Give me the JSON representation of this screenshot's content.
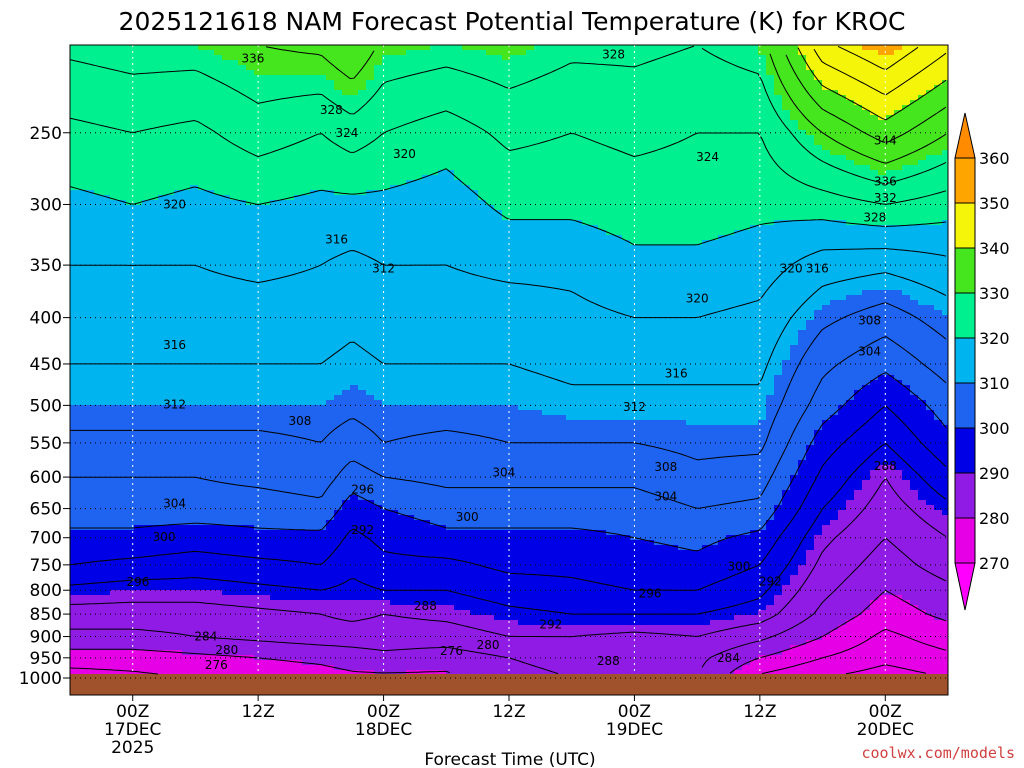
{
  "chart_data": {
    "type": "contour",
    "title": "2025121618 NAM Forecast Potential Temperature (K) for KROC",
    "xlabel": "Forecast Time (UTC)",
    "ylabel": "",
    "credit": "coolwx.com/models",
    "y_scale": "log-pressure",
    "y_ticks": [
      250,
      300,
      350,
      400,
      450,
      500,
      550,
      600,
      650,
      700,
      750,
      800,
      850,
      900,
      950,
      1000
    ],
    "ylim": [
      1000,
      200
    ],
    "x_ticks": [
      {
        "hour": 6,
        "lines": [
          "00Z",
          "17DEC",
          "2025"
        ]
      },
      {
        "hour": 18,
        "lines": [
          "12Z",
          "",
          ""
        ]
      },
      {
        "hour": 30,
        "lines": [
          "00Z",
          "18DEC",
          ""
        ]
      },
      {
        "hour": 42,
        "lines": [
          "12Z",
          "",
          ""
        ]
      },
      {
        "hour": 54,
        "lines": [
          "00Z",
          "19DEC",
          ""
        ]
      },
      {
        "hour": 66,
        "lines": [
          "12Z",
          "",
          ""
        ]
      },
      {
        "hour": 78,
        "lines": [
          "00Z",
          "20DEC",
          ""
        ]
      }
    ],
    "xlim": [
      0,
      84
    ],
    "grid": true,
    "colorbar": {
      "labels": [
        "360",
        "350",
        "340",
        "330",
        "320",
        "310",
        "300",
        "290",
        "280",
        "270"
      ],
      "bands": [
        {
          "lo": 270,
          "hi": 280,
          "color": "#e600e6"
        },
        {
          "lo": 280,
          "hi": 290,
          "color": "#8f1be5"
        },
        {
          "lo": 290,
          "hi": 300,
          "color": "#0000e6"
        },
        {
          "lo": 300,
          "hi": 310,
          "color": "#1e64f0"
        },
        {
          "lo": 310,
          "hi": 320,
          "color": "#00b4f0"
        },
        {
          "lo": 320,
          "hi": 330,
          "color": "#00f090"
        },
        {
          "lo": 330,
          "hi": 340,
          "color": "#46e61e"
        },
        {
          "lo": 340,
          "hi": 350,
          "color": "#f5f50a"
        },
        {
          "lo": 350,
          "hi": 360,
          "color": "#ffa500"
        }
      ],
      "low_arrow_color": "#ff00ff",
      "high_arrow_color": "#ff8c00"
    },
    "ground_color": "#a0522d",
    "contour_interval": 4,
    "profile_levels": [
      1000,
      950,
      900,
      850,
      800,
      750,
      700,
      650,
      600,
      550,
      500,
      450,
      400,
      350,
      300,
      250,
      200
    ],
    "profiles": [
      {
        "hour": 0,
        "theta": [
          274,
          278,
          283,
          286,
          291,
          296,
          299,
          302,
          304,
          307,
          310,
          312,
          314,
          316,
          319,
          323,
          329
        ]
      },
      {
        "hour": 6,
        "theta": [
          275,
          278,
          283,
          286,
          290,
          295,
          299,
          302,
          304,
          307,
          310,
          312,
          314,
          316,
          320,
          324,
          330
        ]
      },
      {
        "hour": 12,
        "theta": [
          276,
          279,
          284,
          286,
          290,
          294,
          298,
          302,
          304,
          307,
          310,
          312,
          314,
          316,
          319,
          323,
          330
        ]
      },
      {
        "hour": 18,
        "theta": [
          277,
          280,
          285,
          287,
          291,
          295,
          299,
          302,
          305,
          307,
          310,
          312,
          314,
          317,
          320,
          326,
          332
        ]
      },
      {
        "hour": 24,
        "theta": [
          278,
          281,
          286,
          288,
          292,
          296,
          299,
          303,
          306,
          308,
          310,
          312,
          314,
          316,
          319,
          324,
          333
        ]
      },
      {
        "hour": 27,
        "theta": [
          279,
          282,
          286,
          289,
          291,
          293,
          295,
          298,
          302,
          306,
          309,
          311,
          313,
          315,
          319,
          326,
          336
        ]
      },
      {
        "hour": 30,
        "theta": [
          279,
          283,
          286,
          288,
          292,
          295,
          297,
          300,
          304,
          308,
          310,
          312,
          314,
          316,
          319,
          324,
          331
        ]
      },
      {
        "hour": 36,
        "theta": [
          279,
          282,
          286,
          289,
          292,
          295,
          299,
          302,
          305,
          307,
          310,
          312,
          314,
          316,
          318,
          322,
          330
        ]
      },
      {
        "hour": 42,
        "theta": [
          283,
          284,
          288,
          291,
          294,
          297,
          299,
          302,
          305,
          308,
          310,
          312,
          314,
          317,
          321,
          325,
          331
        ]
      },
      {
        "hour": 48,
        "theta": [
          284,
          285,
          288,
          292,
          295,
          297,
          299,
          302,
          305,
          308,
          311,
          313,
          315,
          317,
          321,
          324,
          329
        ]
      },
      {
        "hour": 54,
        "theta": [
          284,
          285,
          287,
          292,
          296,
          298,
          300,
          302,
          305,
          308,
          311,
          313,
          316,
          319,
          322,
          325,
          329
        ]
      },
      {
        "hour": 60,
        "theta": [
          284,
          285,
          288,
          292,
          296,
          299,
          301,
          304,
          307,
          309,
          311,
          313,
          316,
          319,
          322,
          324,
          328
        ]
      },
      {
        "hour": 66,
        "theta": [
          275,
          280,
          285,
          290,
          293,
          296,
          299,
          303,
          306,
          309,
          311,
          313,
          315,
          318,
          321,
          324,
          330
        ]
      },
      {
        "hour": 72,
        "theta": [
          272,
          276,
          280,
          283,
          285,
          287,
          289,
          292,
          295,
          298,
          302,
          305,
          309,
          314,
          322,
          332,
          347
        ]
      },
      {
        "hour": 78,
        "theta": [
          270,
          273,
          275,
          278,
          280,
          282,
          284,
          286,
          288,
          292,
          296,
          301,
          306,
          313,
          324,
          338,
          352
        ]
      },
      {
        "hour": 84,
        "theta": [
          272,
          275,
          278,
          281,
          283,
          286,
          288,
          291,
          295,
          299,
          302,
          306,
          310,
          315,
          322,
          332,
          345
        ]
      }
    ],
    "contour_labels": [
      {
        "hour": 17.5,
        "p": 207,
        "text": "336"
      },
      {
        "hour": 52,
        "p": 205,
        "text": "328"
      },
      {
        "hour": 25,
        "p": 236,
        "text": "328"
      },
      {
        "hour": 26.5,
        "p": 250,
        "text": "324"
      },
      {
        "hour": 32,
        "p": 264,
        "text": "320"
      },
      {
        "hour": 61,
        "p": 266,
        "text": "324"
      },
      {
        "hour": 78,
        "p": 255,
        "text": "344"
      },
      {
        "hour": 78,
        "p": 283,
        "text": "336"
      },
      {
        "hour": 78,
        "p": 295,
        "text": "332"
      },
      {
        "hour": 77,
        "p": 310,
        "text": "328"
      },
      {
        "hour": 10,
        "p": 300,
        "text": "320"
      },
      {
        "hour": 30,
        "p": 353,
        "text": "312"
      },
      {
        "hour": 25.5,
        "p": 328,
        "text": "316"
      },
      {
        "hour": 60,
        "p": 381,
        "text": "320"
      },
      {
        "hour": 69,
        "p": 353,
        "text": "320"
      },
      {
        "hour": 71.5,
        "p": 353,
        "text": "316"
      },
      {
        "hour": 76.5,
        "p": 403,
        "text": "308"
      },
      {
        "hour": 76.5,
        "p": 436,
        "text": "304"
      },
      {
        "hour": 10,
        "p": 429,
        "text": "316"
      },
      {
        "hour": 58,
        "p": 461,
        "text": "316"
      },
      {
        "hour": 54,
        "p": 502,
        "text": "312"
      },
      {
        "hour": 10,
        "p": 499,
        "text": "312"
      },
      {
        "hour": 22,
        "p": 520,
        "text": "308"
      },
      {
        "hour": 57,
        "p": 585,
        "text": "308"
      },
      {
        "hour": 41.5,
        "p": 593,
        "text": "304"
      },
      {
        "hour": 57,
        "p": 630,
        "text": "304"
      },
      {
        "hour": 10,
        "p": 642,
        "text": "304"
      },
      {
        "hour": 78,
        "p": 583,
        "text": "288"
      },
      {
        "hour": 28,
        "p": 619,
        "text": "296"
      },
      {
        "hour": 38,
        "p": 664,
        "text": "300"
      },
      {
        "hour": 28,
        "p": 686,
        "text": "292"
      },
      {
        "hour": 9,
        "p": 699,
        "text": "300"
      },
      {
        "hour": 64,
        "p": 753,
        "text": "300"
      },
      {
        "hour": 6.5,
        "p": 783,
        "text": "296"
      },
      {
        "hour": 67,
        "p": 782,
        "text": "292"
      },
      {
        "hour": 55.5,
        "p": 807,
        "text": "296"
      },
      {
        "hour": 34,
        "p": 833,
        "text": "288"
      },
      {
        "hour": 46,
        "p": 873,
        "text": "292"
      },
      {
        "hour": 13,
        "p": 900,
        "text": "284"
      },
      {
        "hour": 15,
        "p": 931,
        "text": "280"
      },
      {
        "hour": 36.5,
        "p": 934,
        "text": "276"
      },
      {
        "hour": 40,
        "p": 920,
        "text": "280"
      },
      {
        "hour": 14,
        "p": 968,
        "text": "276"
      },
      {
        "hour": 51.5,
        "p": 958,
        "text": "288"
      },
      {
        "hour": 63,
        "p": 950,
        "text": "284"
      }
    ]
  }
}
